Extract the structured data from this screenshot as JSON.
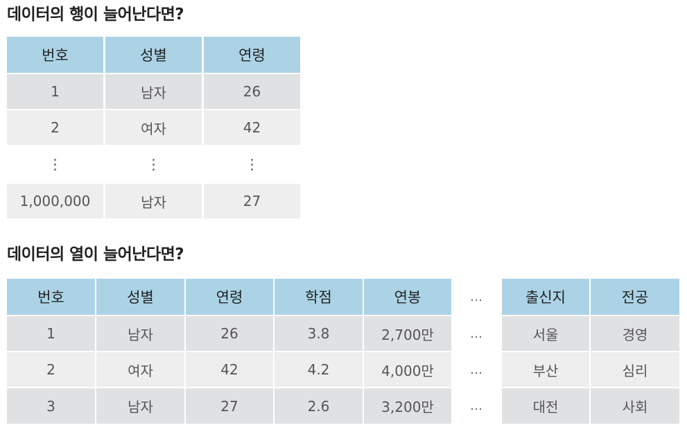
{
  "section1": {
    "title": "데이터의 행이 늘어난다면?",
    "headers": [
      "번호",
      "성별",
      "연령"
    ],
    "rows": [
      [
        "1",
        "남자",
        "26"
      ],
      [
        "2",
        "여자",
        "42"
      ],
      [
        "1,000,000",
        "남자",
        "27"
      ]
    ]
  },
  "section2": {
    "title": "데이터의 열이 늘어난다면?",
    "headers": [
      "번호",
      "성별",
      "연령",
      "학점",
      "연봉",
      "…",
      "출신지",
      "전공"
    ],
    "rows": [
      [
        "1",
        "남자",
        "26",
        "3.8",
        "2,700만",
        "…",
        "서울",
        "경영"
      ],
      [
        "2",
        "여자",
        "42",
        "4.2",
        "4,000만",
        "…",
        "부산",
        "심리"
      ],
      [
        "3",
        "남자",
        "27",
        "2.6",
        "3,200만",
        "…",
        "대전",
        "사회"
      ]
    ]
  }
}
